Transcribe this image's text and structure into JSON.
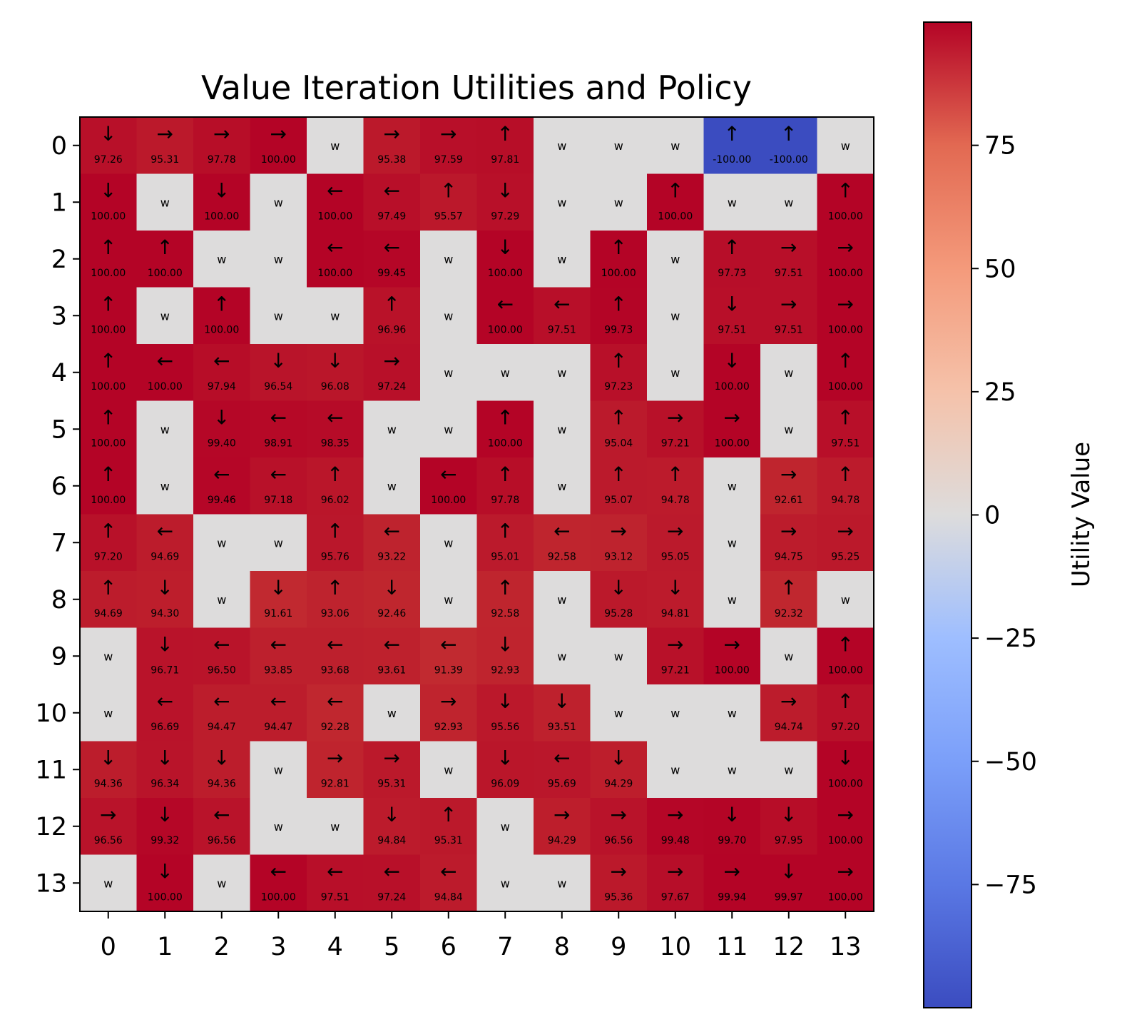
{
  "chart_data": {
    "type": "heatmap",
    "title": "Value Iteration Utilities and Policy",
    "x_ticks": [
      "0",
      "1",
      "2",
      "3",
      "4",
      "5",
      "6",
      "7",
      "8",
      "9",
      "10",
      "11",
      "12",
      "13"
    ],
    "y_ticks": [
      "0",
      "1",
      "2",
      "3",
      "4",
      "5",
      "6",
      "7",
      "8",
      "9",
      "10",
      "11",
      "12",
      "13"
    ],
    "wall_label": "w",
    "wall_color": "#dddcdc",
    "colorscale": "coolwarm",
    "vmin": -100,
    "vmax": 100,
    "colorbar": {
      "label": "Utility Value",
      "ticks": [
        "75",
        "50",
        "25",
        "0",
        "−25",
        "−50",
        "−75"
      ],
      "tick_values": [
        75,
        50,
        25,
        0,
        -25,
        -50,
        -75
      ]
    },
    "rows": [
      [
        {
          "a": "↓",
          "v": "97.26"
        },
        {
          "a": "→",
          "v": "95.31"
        },
        {
          "a": "→",
          "v": "97.78"
        },
        {
          "a": "→",
          "v": "100.00"
        },
        null,
        {
          "a": "→",
          "v": "95.38"
        },
        {
          "a": "→",
          "v": "97.59"
        },
        {
          "a": "↑",
          "v": "97.81"
        },
        null,
        null,
        null,
        {
          "a": "↑",
          "v": "-100.00"
        },
        {
          "a": "↑",
          "v": "-100.00"
        },
        null
      ],
      [
        {
          "a": "↓",
          "v": "100.00"
        },
        null,
        {
          "a": "↓",
          "v": "100.00"
        },
        null,
        {
          "a": "←",
          "v": "100.00"
        },
        {
          "a": "←",
          "v": "97.49"
        },
        {
          "a": "↑",
          "v": "95.57"
        },
        {
          "a": "↓",
          "v": "97.29"
        },
        null,
        null,
        {
          "a": "↑",
          "v": "100.00"
        },
        null,
        null,
        {
          "a": "↑",
          "v": "100.00"
        }
      ],
      [
        {
          "a": "↑",
          "v": "100.00"
        },
        {
          "a": "↑",
          "v": "100.00"
        },
        null,
        null,
        {
          "a": "←",
          "v": "100.00"
        },
        {
          "a": "←",
          "v": "99.45"
        },
        null,
        {
          "a": "↓",
          "v": "100.00"
        },
        null,
        {
          "a": "↑",
          "v": "100.00"
        },
        null,
        {
          "a": "↑",
          "v": "97.73"
        },
        {
          "a": "→",
          "v": "97.51"
        },
        {
          "a": "→",
          "v": "100.00"
        }
      ],
      [
        {
          "a": "↑",
          "v": "100.00"
        },
        null,
        {
          "a": "↑",
          "v": "100.00"
        },
        null,
        null,
        {
          "a": "↑",
          "v": "96.96"
        },
        null,
        {
          "a": "←",
          "v": "100.00"
        },
        {
          "a": "←",
          "v": "97.51"
        },
        {
          "a": "↑",
          "v": "99.73"
        },
        null,
        {
          "a": "↓",
          "v": "97.51"
        },
        {
          "a": "→",
          "v": "97.51"
        },
        {
          "a": "→",
          "v": "100.00"
        }
      ],
      [
        {
          "a": "↑",
          "v": "100.00"
        },
        {
          "a": "←",
          "v": "100.00"
        },
        {
          "a": "←",
          "v": "97.94"
        },
        {
          "a": "↓",
          "v": "96.54"
        },
        {
          "a": "↓",
          "v": "96.08"
        },
        {
          "a": "→",
          "v": "97.24"
        },
        null,
        null,
        null,
        {
          "a": "↑",
          "v": "97.23"
        },
        null,
        {
          "a": "↓",
          "v": "100.00"
        },
        null,
        {
          "a": "↑",
          "v": "100.00"
        }
      ],
      [
        {
          "a": "↑",
          "v": "100.00"
        },
        null,
        {
          "a": "↓",
          "v": "99.40"
        },
        {
          "a": "←",
          "v": "98.91"
        },
        {
          "a": "←",
          "v": "98.35"
        },
        null,
        null,
        {
          "a": "↑",
          "v": "100.00"
        },
        null,
        {
          "a": "↑",
          "v": "95.04"
        },
        {
          "a": "→",
          "v": "97.21"
        },
        {
          "a": "→",
          "v": "100.00"
        },
        null,
        {
          "a": "↑",
          "v": "97.51"
        }
      ],
      [
        {
          "a": "↑",
          "v": "100.00"
        },
        null,
        {
          "a": "←",
          "v": "99.46"
        },
        {
          "a": "←",
          "v": "97.18"
        },
        {
          "a": "↑",
          "v": "96.02"
        },
        null,
        {
          "a": "←",
          "v": "100.00"
        },
        {
          "a": "↑",
          "v": "97.78"
        },
        null,
        {
          "a": "↑",
          "v": "95.07"
        },
        {
          "a": "↑",
          "v": "94.78"
        },
        null,
        {
          "a": "→",
          "v": "92.61"
        },
        {
          "a": "↑",
          "v": "94.78"
        }
      ],
      [
        {
          "a": "↑",
          "v": "97.20"
        },
        {
          "a": "←",
          "v": "94.69"
        },
        null,
        null,
        {
          "a": "↑",
          "v": "95.76"
        },
        {
          "a": "←",
          "v": "93.22"
        },
        null,
        {
          "a": "↑",
          "v": "95.01"
        },
        {
          "a": "←",
          "v": "92.58"
        },
        {
          "a": "→",
          "v": "93.12"
        },
        {
          "a": "→",
          "v": "95.05"
        },
        null,
        {
          "a": "→",
          "v": "94.75"
        },
        {
          "a": "→",
          "v": "95.25"
        }
      ],
      [
        {
          "a": "↑",
          "v": "94.69"
        },
        {
          "a": "↓",
          "v": "94.30"
        },
        null,
        {
          "a": "↓",
          "v": "91.61"
        },
        {
          "a": "↑",
          "v": "93.06"
        },
        {
          "a": "↓",
          "v": "92.46"
        },
        null,
        {
          "a": "↑",
          "v": "92.58"
        },
        null,
        {
          "a": "↓",
          "v": "95.28"
        },
        {
          "a": "↓",
          "v": "94.81"
        },
        null,
        {
          "a": "↑",
          "v": "92.32"
        },
        null
      ],
      [
        null,
        {
          "a": "↓",
          "v": "96.71"
        },
        {
          "a": "←",
          "v": "96.50"
        },
        {
          "a": "←",
          "v": "93.85"
        },
        {
          "a": "←",
          "v": "93.68"
        },
        {
          "a": "←",
          "v": "93.61"
        },
        {
          "a": "←",
          "v": "91.39"
        },
        {
          "a": "↓",
          "v": "92.93"
        },
        null,
        null,
        {
          "a": "→",
          "v": "97.21"
        },
        {
          "a": "→",
          "v": "100.00"
        },
        null,
        {
          "a": "↑",
          "v": "100.00"
        }
      ],
      [
        null,
        {
          "a": "←",
          "v": "96.69"
        },
        {
          "a": "←",
          "v": "94.47"
        },
        {
          "a": "←",
          "v": "94.47"
        },
        {
          "a": "←",
          "v": "92.28"
        },
        null,
        {
          "a": "→",
          "v": "92.93"
        },
        {
          "a": "↓",
          "v": "95.56"
        },
        {
          "a": "↓",
          "v": "93.51"
        },
        null,
        null,
        null,
        {
          "a": "→",
          "v": "94.74"
        },
        {
          "a": "↑",
          "v": "97.20"
        }
      ],
      [
        {
          "a": "↓",
          "v": "94.36"
        },
        {
          "a": "↓",
          "v": "96.34"
        },
        {
          "a": "↓",
          "v": "94.36"
        },
        null,
        {
          "a": "→",
          "v": "92.81"
        },
        {
          "a": "→",
          "v": "95.31"
        },
        null,
        {
          "a": "↓",
          "v": "96.09"
        },
        {
          "a": "←",
          "v": "95.69"
        },
        {
          "a": "↓",
          "v": "94.29"
        },
        null,
        null,
        null,
        {
          "a": "↓",
          "v": "100.00"
        }
      ],
      [
        {
          "a": "→",
          "v": "96.56"
        },
        {
          "a": "↓",
          "v": "99.32"
        },
        {
          "a": "←",
          "v": "96.56"
        },
        null,
        null,
        {
          "a": "↓",
          "v": "94.84"
        },
        {
          "a": "↑",
          "v": "95.31"
        },
        null,
        {
          "a": "→",
          "v": "94.29"
        },
        {
          "a": "→",
          "v": "96.56"
        },
        {
          "a": "→",
          "v": "99.48"
        },
        {
          "a": "↓",
          "v": "99.70"
        },
        {
          "a": "↓",
          "v": "97.95"
        },
        {
          "a": "→",
          "v": "100.00"
        }
      ],
      [
        null,
        {
          "a": "↓",
          "v": "100.00"
        },
        null,
        {
          "a": "←",
          "v": "100.00"
        },
        {
          "a": "←",
          "v": "97.51"
        },
        {
          "a": "←",
          "v": "97.24"
        },
        {
          "a": "←",
          "v": "94.84"
        },
        null,
        null,
        {
          "a": "→",
          "v": "95.36"
        },
        {
          "a": "→",
          "v": "97.67"
        },
        {
          "a": "→",
          "v": "99.94"
        },
        {
          "a": "↓",
          "v": "99.97"
        },
        {
          "a": "→",
          "v": "100.00"
        }
      ]
    ]
  }
}
